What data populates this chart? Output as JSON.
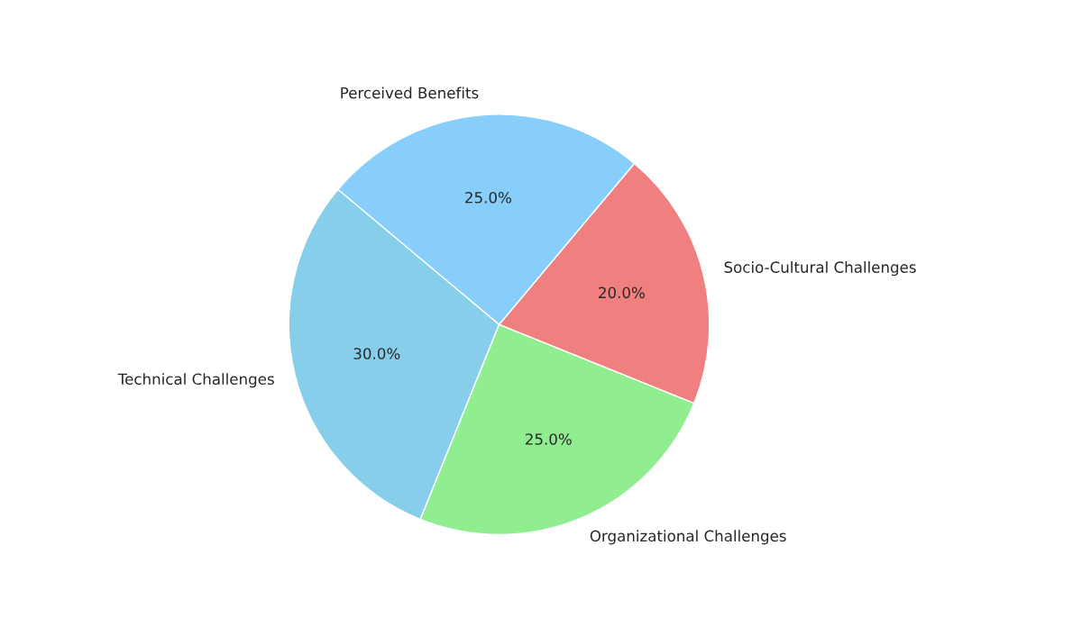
{
  "chart_data": {
    "type": "pie",
    "categories": [
      "Technical Challenges",
      "Organizational Challenges",
      "Socio-Cultural Challenges",
      "Perceived Benefits"
    ],
    "values": [
      30,
      25,
      20,
      25
    ],
    "colors": [
      "#87ceeb",
      "#90ee90",
      "#f08080",
      "#87cefa"
    ],
    "value_labels": [
      "30.0%",
      "25.0%",
      "20.0%",
      "25.0%"
    ]
  }
}
